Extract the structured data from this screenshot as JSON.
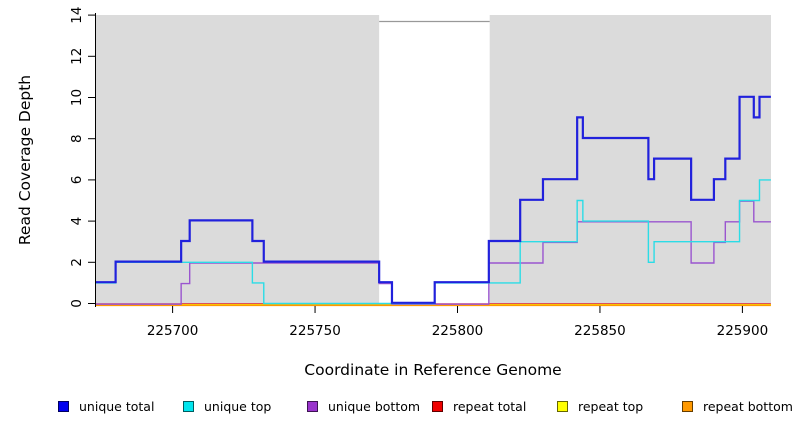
{
  "figure": {
    "x_axis": {
      "label": "Coordinate in Reference Genome",
      "ticks": [
        225700,
        225750,
        225800,
        225850,
        225900
      ],
      "range": [
        225672.8,
        225910.4
      ]
    },
    "y_axis": {
      "label": "Read Coverage Depth",
      "ticks": [
        0,
        2,
        4,
        6,
        8,
        10,
        12,
        14
      ],
      "range": [
        0,
        14
      ]
    }
  },
  "chart_data": {
    "type": "line",
    "step": true,
    "title": "",
    "xlabel": "Coordinate in Reference Genome",
    "ylabel": "Read Coverage Depth",
    "xlim": [
      225672.8,
      225910.4
    ],
    "ylim": [
      0,
      14
    ],
    "grid": false,
    "plot_background": "#dbdbdb",
    "masked_region": {
      "x_from": 225772.5,
      "x_to": 225811.3,
      "fill": "#ffffff",
      "edge": "#999999"
    },
    "series": [
      {
        "name": "repeat_total",
        "label": "repeat total",
        "color": "#dd2233",
        "steps": [
          [
            225673,
            0
          ],
          [
            225910,
            0
          ]
        ]
      },
      {
        "name": "repeat_top",
        "label": "repeat top",
        "color": "#f0f000",
        "steps": [
          [
            225673,
            0
          ],
          [
            225910,
            0
          ]
        ]
      },
      {
        "name": "repeat_bottom",
        "label": "repeat bottom",
        "color": "#ff9800",
        "steps": [
          [
            225673,
            0
          ],
          [
            225910,
            0
          ]
        ]
      },
      {
        "name": "unique_bottom",
        "label": "unique bottom",
        "color": "#9a55cf",
        "steps": [
          [
            225673,
            0
          ],
          [
            225703,
            1
          ],
          [
            225706,
            2
          ],
          [
            225772.5,
            1
          ],
          [
            225777,
            0
          ],
          [
            225811,
            2
          ],
          [
            225830,
            3
          ],
          [
            225842,
            4
          ],
          [
            225882,
            2
          ],
          [
            225890,
            3
          ],
          [
            225894,
            4
          ],
          [
            225899,
            5
          ],
          [
            225904,
            4
          ],
          [
            225910,
            4
          ]
        ]
      },
      {
        "name": "unique_top",
        "label": "unique top",
        "color": "#2bdce6",
        "steps": [
          [
            225673,
            1
          ],
          [
            225680,
            2
          ],
          [
            225728,
            1
          ],
          [
            225732,
            0
          ],
          [
            225792,
            1
          ],
          [
            225822,
            3
          ],
          [
            225842,
            5
          ],
          [
            225844,
            4
          ],
          [
            225867,
            2
          ],
          [
            225869,
            3
          ],
          [
            225899,
            5
          ],
          [
            225906,
            6
          ],
          [
            225910,
            6
          ]
        ]
      },
      {
        "name": "unique_total",
        "label": "unique total",
        "color": "#2121dc",
        "steps": [
          [
            225673,
            1
          ],
          [
            225680,
            2
          ],
          [
            225703,
            3
          ],
          [
            225706,
            4
          ],
          [
            225728,
            3
          ],
          [
            225732,
            2
          ],
          [
            225772.5,
            1
          ],
          [
            225777,
            0
          ],
          [
            225792,
            1
          ],
          [
            225811,
            3
          ],
          [
            225822,
            5
          ],
          [
            225830,
            6
          ],
          [
            225842,
            9
          ],
          [
            225844,
            8
          ],
          [
            225867,
            6
          ],
          [
            225869,
            7
          ],
          [
            225882,
            5
          ],
          [
            225890,
            6
          ],
          [
            225894,
            7
          ],
          [
            225899,
            10
          ],
          [
            225904,
            9
          ],
          [
            225906,
            10
          ],
          [
            225910,
            10
          ]
        ]
      }
    ]
  },
  "legend": {
    "items": [
      {
        "label": "unique total",
        "color": "#0000ee"
      },
      {
        "label": "unique top",
        "color": "#00e5ee"
      },
      {
        "label": "unique bottom",
        "color": "#9933cc"
      },
      {
        "label": "repeat total",
        "color": "#ee0000"
      },
      {
        "label": "repeat top",
        "color": "#ffff00"
      },
      {
        "label": "repeat bottom",
        "color": "#ff9900"
      }
    ]
  }
}
